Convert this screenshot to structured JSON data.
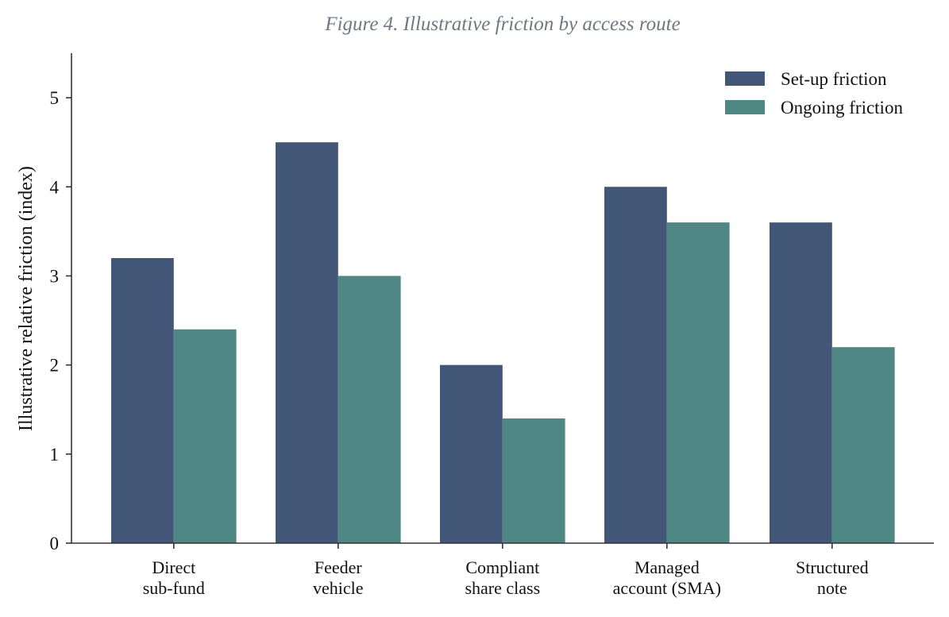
{
  "chart_data": {
    "type": "bar",
    "title": "Figure 4. Illustrative friction by access route",
    "xlabel": "",
    "ylabel": "Illustrative relative friction (index)",
    "ylim": [
      0,
      5.5
    ],
    "yticks": [
      0,
      1,
      2,
      3,
      4,
      5
    ],
    "grid": false,
    "legend_position": "top-right",
    "categories": [
      [
        "Direct",
        "sub-fund"
      ],
      [
        "Feeder",
        "vehicle"
      ],
      [
        "Compliant",
        "share class"
      ],
      [
        "Managed",
        "account (SMA)"
      ],
      [
        "Structured",
        "note"
      ]
    ],
    "series": [
      {
        "name": "Set-up friction",
        "color": "#425777",
        "values": [
          3.2,
          4.5,
          2.0,
          4.0,
          3.6
        ]
      },
      {
        "name": "Ongoing friction",
        "color": "#4e8783",
        "values": [
          2.4,
          3.0,
          1.4,
          3.6,
          2.2
        ]
      }
    ]
  }
}
